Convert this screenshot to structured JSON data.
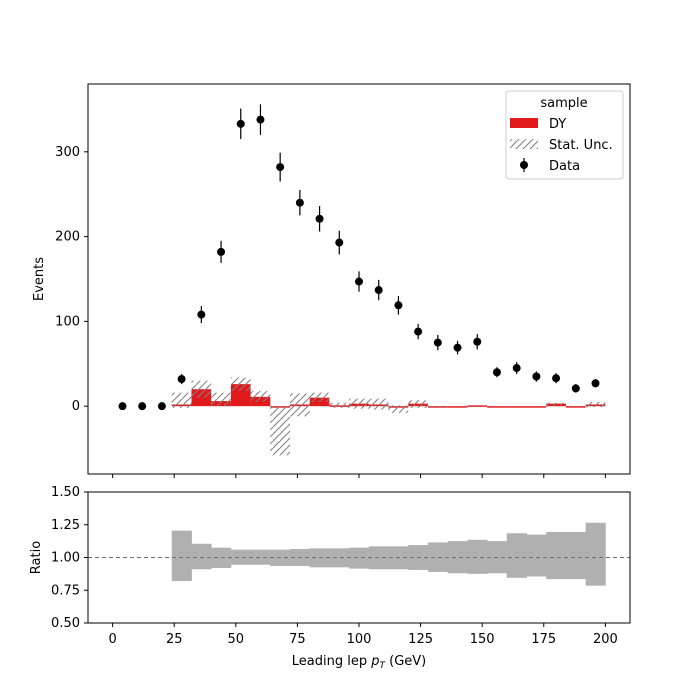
{
  "chart_data": [
    {
      "type": "bar",
      "panel": "main",
      "ylabel": "Events",
      "xlabel": "",
      "xlim": [
        -10,
        210
      ],
      "ylim": [
        -80,
        380
      ],
      "yticks": [
        0,
        100,
        200,
        300
      ],
      "xticks": [
        0,
        25,
        50,
        75,
        100,
        125,
        150,
        175,
        200
      ],
      "bin_edges": [
        24,
        32,
        40,
        48,
        56,
        64,
        72,
        80,
        88,
        96,
        104,
        112,
        120,
        128,
        136,
        144,
        152,
        160,
        168,
        176,
        184,
        192,
        200
      ],
      "legend": {
        "title": "sample",
        "placement": "top-right",
        "entries": [
          "DY",
          "Stat. Unc.",
          "Data"
        ]
      },
      "series": [
        {
          "name": "DY",
          "kind": "histogram",
          "color": "#e31a1c",
          "values": [
            2,
            20,
            6,
            26,
            11,
            0,
            2,
            10,
            1,
            3,
            2,
            -1,
            3,
            -1,
            0,
            1,
            0,
            0,
            0,
            3,
            0,
            2
          ]
        },
        {
          "name": "Stat. Unc.",
          "kind": "hatched-band",
          "color": "#808080",
          "lower": [
            -2,
            10,
            0,
            18,
            5,
            -58,
            -12,
            5,
            -2,
            -3,
            -4,
            -8,
            -2,
            -1,
            0,
            0,
            0,
            0,
            0,
            1,
            0,
            -1
          ],
          "upper": [
            16,
            30,
            16,
            34,
            18,
            0,
            15,
            16,
            4,
            9,
            9,
            1,
            7,
            0,
            0,
            1,
            0,
            0,
            0,
            4,
            0,
            5
          ]
        },
        {
          "name": "Data",
          "kind": "errorbar",
          "color": "#000000",
          "x": [
            4,
            12,
            20,
            28,
            36,
            44,
            52,
            60,
            68,
            76,
            84,
            92,
            100,
            108,
            116,
            124,
            132,
            140,
            148,
            156,
            164,
            172,
            180,
            188,
            196
          ],
          "y": [
            0,
            0,
            0,
            32,
            108,
            182,
            333,
            338,
            282,
            240,
            221,
            193,
            147,
            137,
            119,
            88,
            75,
            69,
            76,
            40,
            45,
            35,
            33,
            21,
            27
          ],
          "yerr": [
            0,
            0,
            0,
            6,
            10,
            13,
            18,
            18,
            17,
            15,
            15,
            14,
            12,
            12,
            11,
            9,
            9,
            8,
            9,
            6,
            7,
            6,
            6,
            5,
            5
          ]
        }
      ]
    },
    {
      "type": "bar",
      "panel": "ratio",
      "ylabel": "Ratio",
      "xlabel": "Leading lep pT (GeV)",
      "xlim": [
        -10,
        210
      ],
      "ylim": [
        0.5,
        1.5
      ],
      "yticks": [
        "0.50",
        "0.75",
        "1.00",
        "1.25",
        "1.50"
      ],
      "xticks": [
        "0",
        "25",
        "50",
        "75",
        "100",
        "125",
        "150",
        "175",
        "200"
      ],
      "reference_line": 1.0,
      "bin_edges": [
        24,
        32,
        40,
        48,
        56,
        64,
        72,
        80,
        88,
        96,
        104,
        112,
        120,
        128,
        136,
        144,
        152,
        160,
        168,
        176,
        184,
        192,
        200
      ],
      "band_color": "#b0b0b0",
      "band_lower": [
        0.82,
        0.91,
        0.92,
        0.945,
        0.945,
        0.935,
        0.935,
        0.925,
        0.925,
        0.915,
        0.91,
        0.91,
        0.905,
        0.89,
        0.88,
        0.875,
        0.88,
        0.845,
        0.855,
        0.835,
        0.835,
        0.785,
        0.805
      ],
      "band_upper": [
        1.205,
        1.105,
        1.075,
        1.06,
        1.06,
        1.06,
        1.065,
        1.07,
        1.07,
        1.075,
        1.085,
        1.085,
        1.095,
        1.115,
        1.125,
        1.135,
        1.125,
        1.185,
        1.175,
        1.195,
        1.195,
        1.265,
        1.23
      ]
    }
  ]
}
